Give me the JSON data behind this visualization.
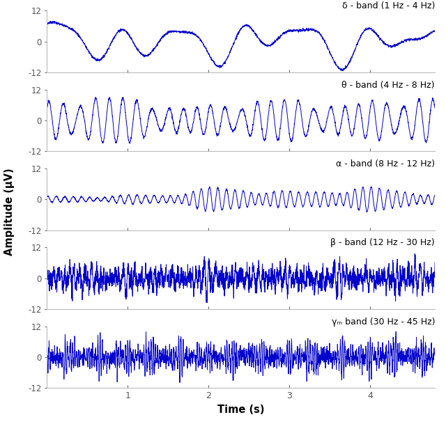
{
  "title_delta": "δ - band (1 Hz - 4 Hz)",
  "title_theta": "θ - band (4 Hz - 8 Hz)",
  "title_alpha": "α - band (8 Hz - 12 Hz)",
  "title_beta": "β - band (12 Hz - 30 Hz)",
  "title_gamma": "γₘ band (30 Hz - 45 Hz)",
  "ylabel": "Amplitude (μV)",
  "xlabel": "Time (s)",
  "ylim": [
    -12,
    12
  ],
  "yticks": [
    -12,
    0,
    12
  ],
  "xlim": [
    0,
    4.8
  ],
  "xticks": [
    1,
    2,
    3,
    4
  ],
  "duration": 4.8,
  "fs": 500,
  "line_color": "#0000cc",
  "line_width": 0.7,
  "bg_color": "#ffffff"
}
